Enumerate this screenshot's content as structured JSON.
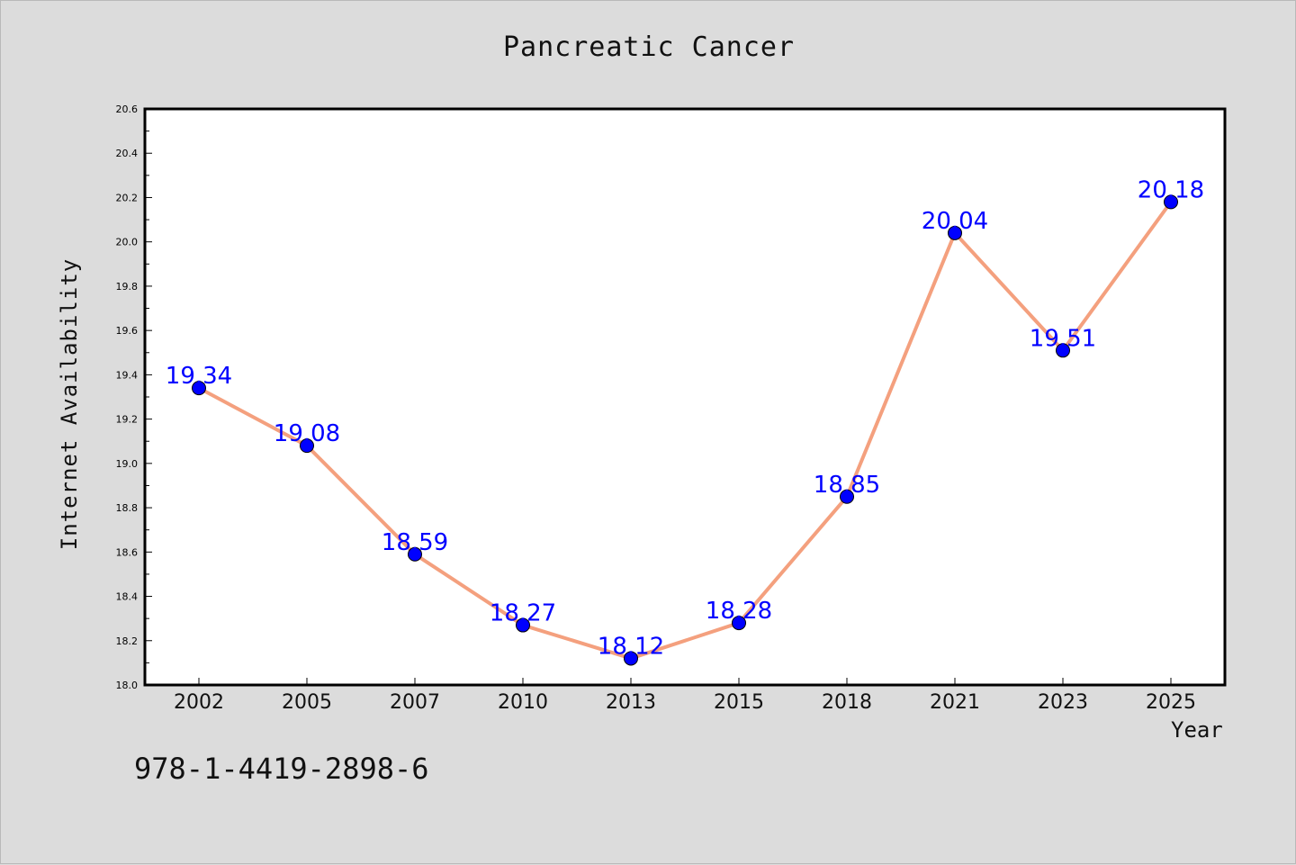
{
  "footer": {
    "isbn": "978-1-4419-2898-6"
  },
  "colors": {
    "background": "#dcdcdc",
    "plot_background": "#ffffff",
    "line": "#f4a07e",
    "marker": "#0000ff",
    "data_label": "#0000ff",
    "axis": "#000000"
  },
  "chart_data": {
    "type": "line",
    "title": "Pancreatic Cancer",
    "xlabel": "Year",
    "ylabel": "Internet Availability",
    "categories": [
      "2002",
      "2005",
      "2007",
      "2010",
      "2013",
      "2015",
      "2018",
      "2021",
      "2023",
      "2025"
    ],
    "series": [
      {
        "values": [
          19.34,
          19.08,
          18.59,
          18.27,
          18.12,
          18.28,
          18.85,
          20.04,
          19.51,
          20.18
        ]
      }
    ],
    "ylim": [
      18.0,
      20.6
    ],
    "yticks": [
      "18.0",
      "18.2",
      "18.4",
      "18.6",
      "18.8",
      "19.0",
      "19.2",
      "19.4",
      "19.6",
      "19.8",
      "20.0",
      "20.2",
      "20.4",
      "20.6"
    ],
    "data_labels": [
      "19.34",
      "19.08",
      "18.59",
      "18.27",
      "18.12",
      "18.28",
      "18.85",
      "20.04",
      "19.51",
      "20.18"
    ],
    "grid": false,
    "legend": "none"
  }
}
